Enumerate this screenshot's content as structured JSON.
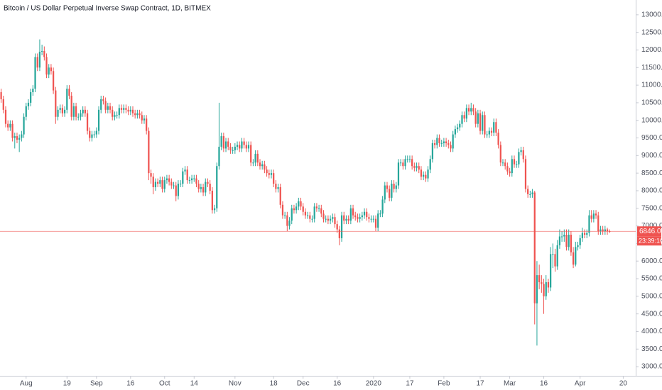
{
  "chart_data": {
    "type": "candlestick",
    "title": "Bitcoin / US Dollar Perpetual Inverse Swap Contract, 1D, BITMEX",
    "up_color": "#26a69a",
    "down_color": "#ef5350",
    "grid": false,
    "open": [
      10800,
      10600,
      10300,
      9900,
      9800,
      9900,
      9500,
      9550,
      9450,
      9500,
      9600,
      10100,
      10400,
      10500,
      10800,
      10900,
      11800,
      11500,
      11950,
      11970,
      11800,
      11300,
      11500,
      11400,
      10850,
      10100,
      10300,
      10350,
      10200,
      10300,
      10900,
      10700,
      10100,
      10400,
      10100,
      10100,
      10200,
      10300,
      10200,
      9700,
      9500,
      9600,
      9600,
      9700,
      10300,
      10600,
      10550,
      10300,
      10400,
      10300,
      10100,
      10150,
      10150,
      10350,
      10300,
      10350,
      10300,
      10250,
      10300,
      10200,
      10150,
      10200,
      10150,
      10000,
      10050,
      9700,
      8500,
      8400,
      8100,
      8250,
      8200,
      8300,
      8050,
      8300,
      8350,
      8250,
      8150,
      8150,
      7850,
      8200,
      8200,
      8550,
      8600,
      8300,
      8300,
      8350,
      8350,
      8200,
      8050,
      8100,
      7950,
      8250,
      8200,
      8000,
      7450,
      7500,
      8700,
      9250,
      9550,
      9200,
      9400,
      9250,
      9150,
      9150,
      9250,
      9300,
      9200,
      9400,
      9300,
      9200,
      9300,
      8800,
      8800,
      9050,
      8800,
      8700,
      8750,
      8600,
      8500,
      8450,
      8500,
      8200,
      8050,
      8100,
      7600,
      7300,
      7300,
      7000,
      7150,
      7500,
      7450,
      7550,
      7700,
      7550,
      7400,
      7300,
      7300,
      7200,
      7200,
      7550,
      7500,
      7500,
      7350,
      7200,
      7200,
      7150,
      7200,
      7250,
      7050,
      6900,
      6650,
      7300,
      7150,
      7200,
      7150,
      7500,
      7300,
      7250,
      7200,
      7250,
      7300,
      7400,
      7250,
      7200,
      7200,
      7200,
      6950,
      7350,
      7350,
      7750,
      8150,
      8050,
      7800,
      8200,
      8050,
      8150,
      8800,
      8800,
      8700,
      8900,
      8900,
      8900,
      8700,
      8650,
      8700,
      8600,
      8400,
      8450,
      8350,
      8600,
      8900,
      9350,
      9300,
      9500,
      9350,
      9350,
      9400,
      9350,
      9300,
      9200,
      9600,
      9750,
      9800,
      9900,
      10150,
      10050,
      10350,
      10250,
      10350,
      10250,
      9900,
      10200,
      9700,
      10150,
      9600,
      9600,
      9700,
      9650,
      9950,
      9650,
      9300,
      8800,
      8800,
      8700,
      8550,
      8500,
      8900,
      8750,
      8750,
      9100,
      9150,
      8900,
      8050,
      7900,
      7900,
      7950,
      4800,
      5600,
      5400,
      5350,
      5000,
      5400,
      5250,
      6200,
      6200,
      5850,
      6450,
      6700,
      6700,
      6750,
      6400,
      6750,
      6250,
      5900,
      6400,
      6450,
      6650,
      6800,
      6750,
      6800,
      7300,
      7200,
      7350,
      7300,
      6850,
      6900,
      6850,
      6900,
      6850
    ],
    "high": [
      10900,
      10700,
      10400,
      10000,
      10000,
      10000,
      9650,
      9650,
      9600,
      9700,
      10200,
      10500,
      10600,
      10900,
      11000,
      11900,
      11900,
      12300,
      12150,
      12100,
      11900,
      11600,
      11600,
      11500,
      10950,
      10400,
      10450,
      10450,
      10400,
      11000,
      11000,
      10800,
      10500,
      10500,
      10200,
      10300,
      10400,
      10400,
      10300,
      9800,
      9700,
      9700,
      9800,
      10400,
      10700,
      10700,
      10650,
      10500,
      10500,
      10400,
      10250,
      10250,
      10450,
      10450,
      10450,
      10450,
      10400,
      10400,
      10400,
      10300,
      10300,
      10300,
      10250,
      10150,
      10150,
      9800,
      8600,
      8500,
      8350,
      8350,
      8400,
      8400,
      8400,
      8450,
      8450,
      8350,
      8250,
      8250,
      8300,
      8300,
      8650,
      8700,
      8700,
      8400,
      8450,
      8450,
      8450,
      8300,
      8200,
      8200,
      8350,
      8350,
      8300,
      8100,
      7600,
      8800,
      10500,
      9650,
      9650,
      9500,
      9500,
      9350,
      9250,
      9350,
      9400,
      9400,
      9500,
      9500,
      9400,
      9400,
      9400,
      8900,
      9150,
      9150,
      8900,
      8850,
      8850,
      8700,
      8600,
      8600,
      8600,
      8300,
      8200,
      8200,
      7700,
      7400,
      7400,
      7250,
      7600,
      7600,
      7650,
      7800,
      7800,
      7650,
      7500,
      7400,
      7400,
      7300,
      7650,
      7650,
      7600,
      7600,
      7450,
      7300,
      7300,
      7300,
      7350,
      7350,
      7150,
      7000,
      7400,
      7400,
      7300,
      7300,
      7600,
      7600,
      7400,
      7350,
      7350,
      7400,
      7500,
      7500,
      7350,
      7300,
      7300,
      7300,
      7450,
      7450,
      7850,
      8250,
      8250,
      8150,
      8300,
      8300,
      8250,
      8900,
      8900,
      8900,
      9000,
      9000,
      9000,
      9000,
      8800,
      8800,
      8800,
      8700,
      8550,
      8550,
      8700,
      9000,
      9450,
      9450,
      9600,
      9600,
      9450,
      9500,
      9500,
      9450,
      9400,
      9700,
      9850,
      9900,
      10000,
      10250,
      10250,
      10450,
      10450,
      10500,
      10450,
      10350,
      10300,
      10300,
      10250,
      10250,
      9700,
      9800,
      9800,
      10050,
      10050,
      9750,
      9400,
      8900,
      8900,
      8800,
      8650,
      9000,
      9000,
      8850,
      9200,
      9250,
      9250,
      9000,
      8150,
      8000,
      8050,
      8000,
      6000,
      5900,
      5600,
      5500,
      5600,
      5500,
      6400,
      6500,
      6350,
      6600,
      6900,
      6850,
      6900,
      6900,
      6900,
      6850,
      6400,
      6550,
      6550,
      6750,
      6950,
      6900,
      6900,
      7450,
      7450,
      7450,
      7450,
      7400,
      7000,
      7000,
      7000,
      6950,
      6900
    ],
    "low": [
      10500,
      10200,
      9800,
      9700,
      9700,
      9400,
      9200,
      9350,
      9100,
      9400,
      9500,
      10000,
      10300,
      10400,
      10700,
      10800,
      11400,
      11400,
      11850,
      11700,
      11200,
      11200,
      11300,
      10750,
      9900,
      10000,
      10200,
      10100,
      10100,
      10200,
      10600,
      10000,
      10000,
      10000,
      10000,
      10000,
      10100,
      10100,
      9600,
      9400,
      9400,
      9500,
      9500,
      9600,
      10200,
      10450,
      10200,
      10200,
      10200,
      10000,
      10000,
      10050,
      10050,
      10200,
      10200,
      10200,
      10150,
      10150,
      10100,
      10050,
      10050,
      10050,
      9900,
      9900,
      9600,
      8300,
      8200,
      7900,
      8000,
      8100,
      8100,
      7950,
      7950,
      8200,
      8150,
      8050,
      8050,
      7700,
      7750,
      8100,
      8100,
      8450,
      8200,
      8200,
      8200,
      8250,
      8100,
      7950,
      7950,
      7850,
      7850,
      8100,
      7900,
      7350,
      7350,
      7400,
      8600,
      9150,
      9100,
      9100,
      9150,
      9050,
      9050,
      9050,
      9150,
      9100,
      9100,
      9200,
      9100,
      9100,
      8700,
      8700,
      8700,
      8700,
      8600,
      8600,
      8500,
      8400,
      8350,
      8350,
      8100,
      7950,
      7950,
      7500,
      7200,
      7200,
      6850,
      6900,
      7050,
      7350,
      7350,
      7450,
      7450,
      7300,
      7200,
      7200,
      7100,
      7100,
      7100,
      7400,
      7400,
      7250,
      7100,
      7100,
      7050,
      7050,
      7100,
      6950,
      6800,
      6450,
      6550,
      7050,
      7050,
      7050,
      7050,
      7200,
      7150,
      7100,
      7100,
      7150,
      7200,
      7150,
      7100,
      7100,
      7100,
      6850,
      6850,
      7250,
      7250,
      7650,
      7950,
      7700,
      7700,
      7950,
      7950,
      8050,
      8700,
      8600,
      8600,
      8800,
      8800,
      8600,
      8550,
      8550,
      8500,
      8300,
      8300,
      8250,
      8250,
      8500,
      8800,
      9200,
      9200,
      9250,
      9250,
      9250,
      9250,
      9200,
      9100,
      9100,
      9500,
      9650,
      9700,
      9800,
      9950,
      9950,
      10150,
      10150,
      10150,
      9800,
      9800,
      9600,
      9600,
      9500,
      9500,
      9500,
      9550,
      9550,
      9550,
      9200,
      8700,
      8700,
      8600,
      8450,
      8400,
      8400,
      8650,
      8650,
      8650,
      9000,
      8800,
      7950,
      7800,
      7800,
      7800,
      4200,
      3600,
      5200,
      5100,
      4500,
      4900,
      5100,
      5150,
      5800,
      5700,
      5750,
      6350,
      6550,
      6550,
      6300,
      6300,
      6150,
      5800,
      5850,
      6300,
      6350,
      6550,
      6650,
      6650,
      6700,
      7100,
      7100,
      7200,
      6750,
      6750,
      6750,
      6750,
      6750,
      6800
    ],
    "close": [
      10600,
      10300,
      9900,
      9800,
      9900,
      9500,
      9550,
      9450,
      9500,
      9600,
      10100,
      10400,
      10500,
      10800,
      10900,
      11800,
      11500,
      11950,
      11970,
      11800,
      11300,
      11500,
      11400,
      10850,
      10100,
      10300,
      10350,
      10200,
      10300,
      10900,
      10700,
      10100,
      10400,
      10100,
      10100,
      10200,
      10300,
      10200,
      9700,
      9500,
      9600,
      9600,
      9700,
      10300,
      10600,
      10550,
      10300,
      10400,
      10300,
      10100,
      10150,
      10150,
      10350,
      10300,
      10350,
      10300,
      10250,
      10300,
      10200,
      10150,
      10200,
      10150,
      10000,
      10050,
      9700,
      8500,
      8400,
      8100,
      8250,
      8200,
      8300,
      8050,
      8300,
      8350,
      8250,
      8150,
      8150,
      7850,
      8200,
      8200,
      8550,
      8600,
      8300,
      8300,
      8350,
      8350,
      8200,
      8050,
      8100,
      7950,
      8250,
      8200,
      8000,
      7450,
      7500,
      8700,
      9250,
      9550,
      9200,
      9400,
      9250,
      9150,
      9150,
      9250,
      9300,
      9200,
      9400,
      9300,
      9200,
      9300,
      8800,
      8800,
      9050,
      8800,
      8700,
      8750,
      8600,
      8500,
      8450,
      8500,
      8200,
      8050,
      8100,
      7600,
      7300,
      7300,
      7000,
      7150,
      7500,
      7450,
      7550,
      7700,
      7550,
      7400,
      7300,
      7300,
      7200,
      7200,
      7550,
      7500,
      7500,
      7350,
      7200,
      7200,
      7150,
      7200,
      7250,
      7050,
      6900,
      6650,
      7300,
      7150,
      7200,
      7150,
      7500,
      7300,
      7250,
      7200,
      7250,
      7300,
      7400,
      7250,
      7200,
      7200,
      7200,
      6950,
      7350,
      7350,
      7750,
      8150,
      8050,
      7800,
      8200,
      8050,
      8150,
      8800,
      8800,
      8700,
      8900,
      8900,
      8900,
      8700,
      8650,
      8700,
      8600,
      8400,
      8450,
      8350,
      8600,
      8900,
      9350,
      9300,
      9500,
      9350,
      9350,
      9400,
      9350,
      9300,
      9200,
      9600,
      9750,
      9800,
      9900,
      10150,
      10050,
      10350,
      10250,
      10350,
      10250,
      9900,
      10200,
      9700,
      10150,
      9600,
      9600,
      9700,
      9650,
      9950,
      9650,
      9300,
      8800,
      8800,
      8700,
      8550,
      8500,
      8900,
      8750,
      8750,
      9100,
      9150,
      8900,
      8050,
      7900,
      7900,
      7950,
      4800,
      5600,
      5400,
      5350,
      5000,
      5400,
      5250,
      6200,
      6200,
      5850,
      6450,
      6700,
      6700,
      6750,
      6400,
      6750,
      6250,
      5900,
      6400,
      6450,
      6650,
      6800,
      6750,
      6800,
      7300,
      7200,
      7350,
      7300,
      6850,
      6900,
      6850,
      6900,
      6850,
      6846
    ],
    "xlim": [
      -0.5,
      279.5
    ],
    "xticks": [
      {
        "value": 11,
        "label": "Aug"
      },
      {
        "value": 29,
        "label": "19"
      },
      {
        "value": 42,
        "label": "Sep"
      },
      {
        "value": 57,
        "label": "16"
      },
      {
        "value": 72,
        "label": "Oct"
      },
      {
        "value": 85,
        "label": "14"
      },
      {
        "value": 103,
        "label": "Nov"
      },
      {
        "value": 120,
        "label": "18"
      },
      {
        "value": 133,
        "label": "Dec"
      },
      {
        "value": 148,
        "label": "16"
      },
      {
        "value": 164,
        "label": "2020"
      },
      {
        "value": 180,
        "label": "17"
      },
      {
        "value": 195,
        "label": "Feb"
      },
      {
        "value": 211,
        "label": "17"
      },
      {
        "value": 224,
        "label": "Mar"
      },
      {
        "value": 239,
        "label": "16"
      },
      {
        "value": 255,
        "label": "Apr"
      },
      {
        "value": 274,
        "label": "20"
      }
    ],
    "ylim": [
      2740,
      13420
    ],
    "yticks": [
      {
        "value": 3000,
        "label": "3000.0"
      },
      {
        "value": 3500,
        "label": "3500.0"
      },
      {
        "value": 4000,
        "label": "4000.0"
      },
      {
        "value": 4500,
        "label": "4500.0"
      },
      {
        "value": 5000,
        "label": "5000.0"
      },
      {
        "value": 5500,
        "label": "5500.0"
      },
      {
        "value": 6000,
        "label": "6000.0"
      },
      {
        "value": 6500,
        "label": "6500.0"
      },
      {
        "value": 7000,
        "label": "7000.0"
      },
      {
        "value": 7500,
        "label": "7500.0"
      },
      {
        "value": 8000,
        "label": "8000.0"
      },
      {
        "value": 8500,
        "label": "8500.0"
      },
      {
        "value": 9000,
        "label": "9000.0"
      },
      {
        "value": 9500,
        "label": "9500.0"
      },
      {
        "value": 10000,
        "label": "10000.0"
      },
      {
        "value": 10500,
        "label": "10500.0"
      },
      {
        "value": 11000,
        "label": "11000.0"
      },
      {
        "value": 11500,
        "label": "11500.0"
      },
      {
        "value": 12000,
        "label": "12000.0"
      },
      {
        "value": 12500,
        "label": "12500.0"
      },
      {
        "value": 13000,
        "label": "13000.0"
      }
    ],
    "last_price": {
      "value": 6846,
      "label": "6846.0"
    },
    "countdown": "23:39:16"
  }
}
